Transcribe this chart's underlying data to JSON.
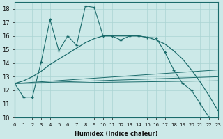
{
  "xlabel": "Humidex (Indice chaleur)",
  "xlim": [
    0,
    23
  ],
  "ylim": [
    10,
    18.5
  ],
  "xticks": [
    0,
    1,
    2,
    3,
    4,
    5,
    6,
    7,
    8,
    9,
    10,
    11,
    12,
    13,
    14,
    15,
    16,
    17,
    18,
    19,
    20,
    21,
    22,
    23
  ],
  "yticks": [
    10,
    11,
    12,
    13,
    14,
    15,
    16,
    17,
    18
  ],
  "bg_color": "#cce9e8",
  "line_color": "#1a6b6b",
  "grid_color": "#aad4d3",
  "jagged_x": [
    0,
    1,
    2,
    3,
    4,
    5,
    6,
    7,
    8,
    9,
    10,
    11,
    12,
    13,
    14,
    15,
    16,
    17,
    18,
    19,
    20,
    21,
    22,
    23
  ],
  "jagged_y": [
    12.5,
    11.5,
    11.5,
    14.1,
    17.2,
    14.9,
    16.0,
    15.3,
    18.2,
    18.1,
    16.0,
    16.0,
    15.7,
    16.0,
    16.0,
    15.9,
    15.85,
    14.8,
    13.5,
    12.5,
    12.0,
    11.0,
    10.0,
    9.8
  ],
  "smooth_x": [
    0,
    1,
    2,
    3,
    4,
    5,
    6,
    7,
    8,
    9,
    10,
    11,
    12,
    13,
    14,
    15,
    16,
    17,
    18,
    19,
    20,
    21,
    22,
    23
  ],
  "smooth_y": [
    12.5,
    12.7,
    13.0,
    13.4,
    13.9,
    14.3,
    14.7,
    15.1,
    15.5,
    15.8,
    16.0,
    16.0,
    16.0,
    16.0,
    16.0,
    15.9,
    15.7,
    15.4,
    14.9,
    14.3,
    13.5,
    12.6,
    11.6,
    10.5
  ],
  "trend1_x": [
    0,
    23
  ],
  "trend1_y": [
    12.5,
    12.7
  ],
  "trend2_x": [
    0,
    23
  ],
  "trend2_y": [
    12.5,
    13.0
  ],
  "trend3_x": [
    0,
    23
  ],
  "trend3_y": [
    12.5,
    13.5
  ]
}
